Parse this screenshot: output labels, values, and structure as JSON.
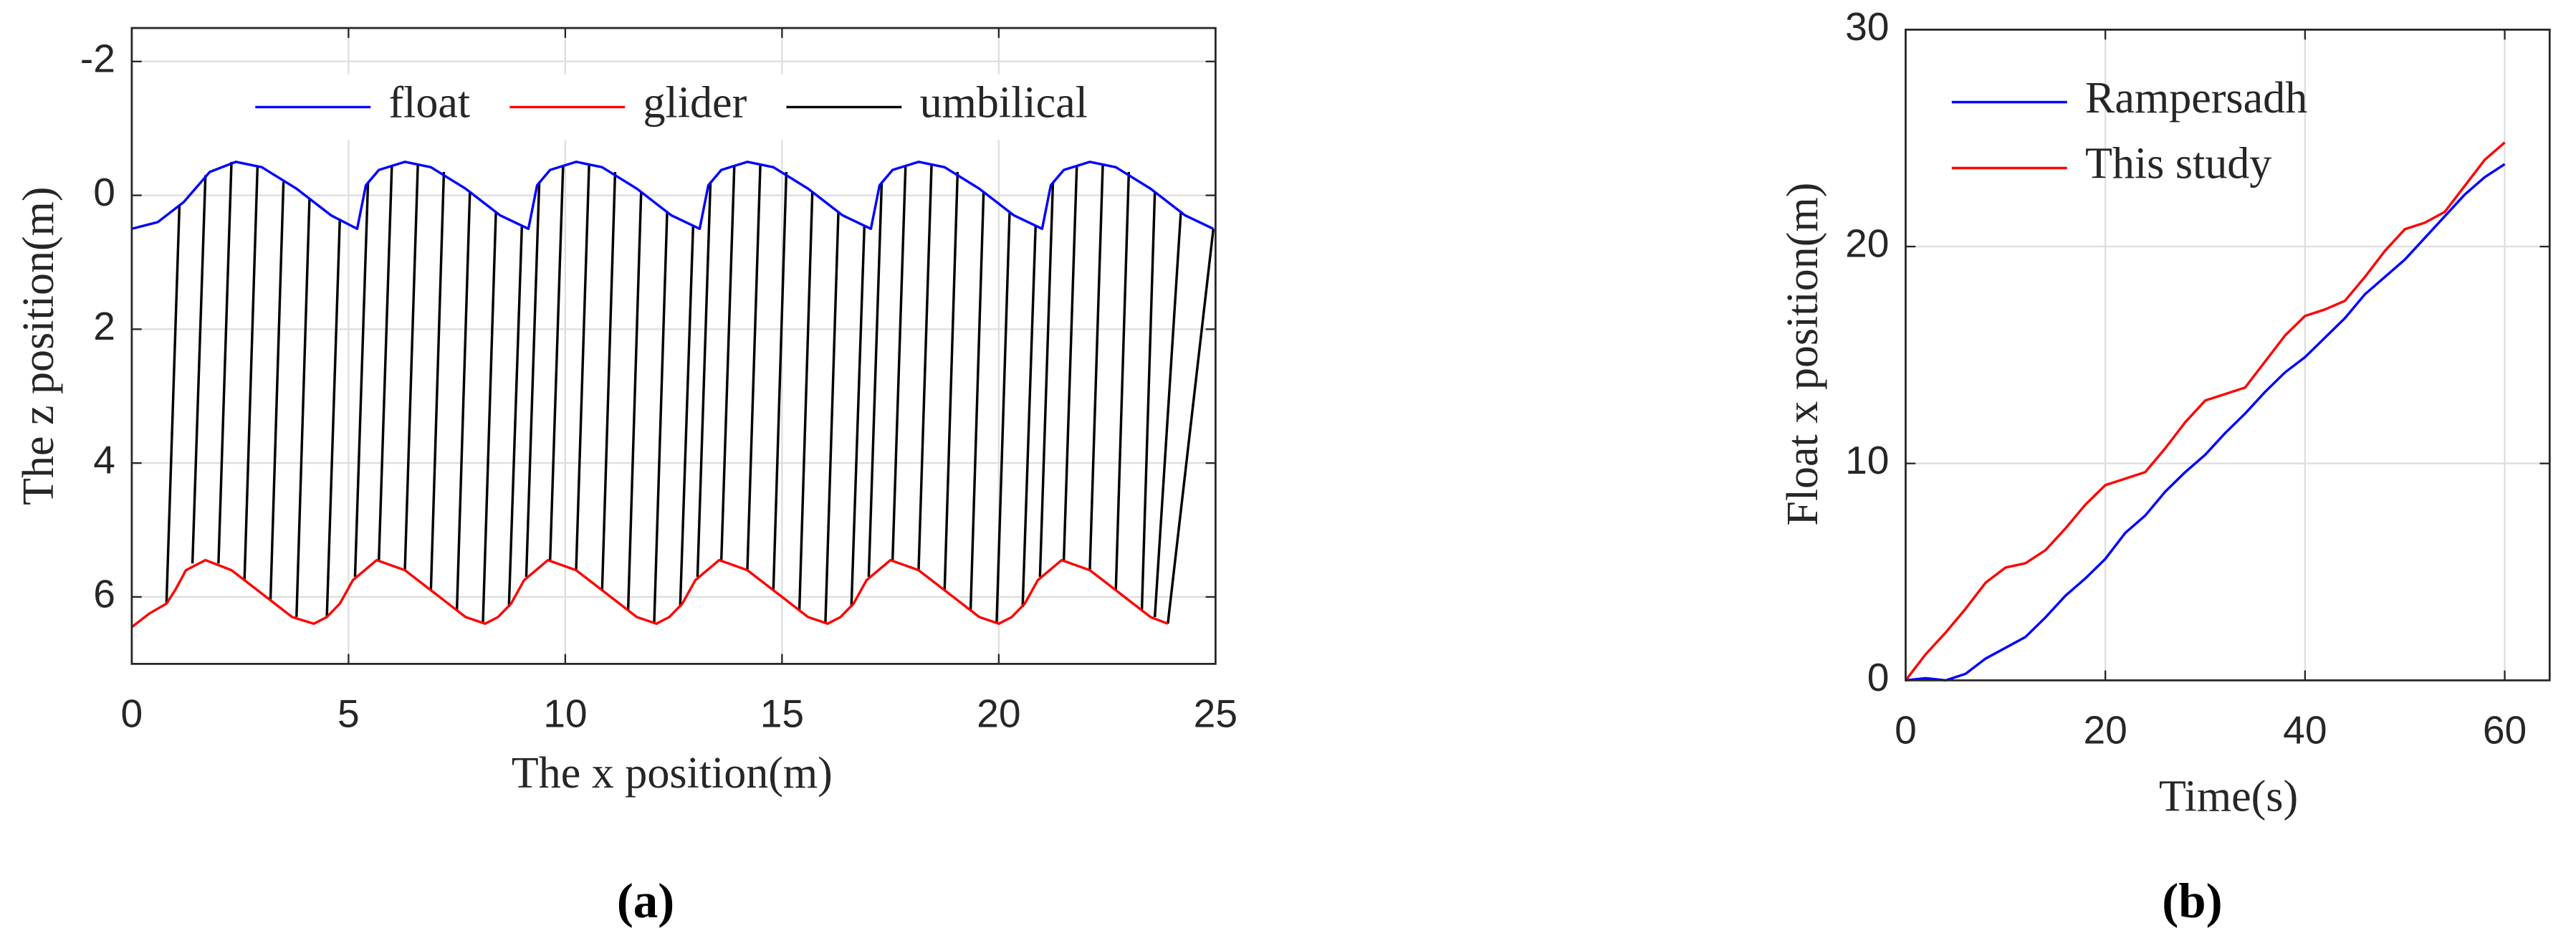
{
  "chart_data": [
    {
      "type": "line",
      "caption": "(a)",
      "xlabel": "The x position(m)",
      "ylabel": "The z position(m)",
      "xlim": [
        0,
        25
      ],
      "ylim": [
        -2.5,
        7
      ],
      "y_reverse": true,
      "xticks": [
        0,
        5,
        10,
        15,
        20,
        25
      ],
      "yticks": [
        -2,
        0,
        2,
        4,
        6
      ],
      "grid": true,
      "legend": "top",
      "series": [
        {
          "name": "float",
          "color": "#0000ff",
          "x": [
            0,
            0.6,
            1.2,
            1.8,
            2.4,
            3.0,
            3.8,
            4.6,
            5.2,
            5.4,
            5.7,
            6.3,
            6.9,
            7.7,
            8.5,
            9.15,
            9.35,
            9.65,
            10.25,
            10.85,
            11.65,
            12.45,
            13.1,
            13.3,
            13.6,
            14.2,
            14.8,
            15.6,
            16.4,
            17.05,
            17.25,
            17.55,
            18.15,
            18.75,
            19.55,
            20.35,
            21.0,
            21.2,
            21.5,
            22.1,
            22.7,
            23.5,
            24.3,
            24.95
          ],
          "values": [
            0.5,
            0.4,
            0.1,
            -0.35,
            -0.5,
            -0.42,
            -0.1,
            0.3,
            0.5,
            -0.15,
            -0.38,
            -0.5,
            -0.42,
            -0.1,
            0.3,
            0.5,
            -0.15,
            -0.38,
            -0.5,
            -0.42,
            -0.1,
            0.3,
            0.5,
            -0.15,
            -0.38,
            -0.5,
            -0.42,
            -0.1,
            0.3,
            0.5,
            -0.15,
            -0.38,
            -0.5,
            -0.42,
            -0.1,
            0.3,
            0.5,
            -0.15,
            -0.38,
            -0.5,
            -0.42,
            -0.1,
            0.3,
            0.5
          ]
        },
        {
          "name": "glider",
          "color": "#ff0000",
          "x": [
            0,
            0.4,
            0.8,
            1.0,
            1.25,
            1.7,
            2.3,
            3.0,
            3.7,
            4.2,
            4.5,
            4.8,
            5.1,
            5.65,
            6.3,
            7.0,
            7.7,
            8.15,
            8.45,
            8.75,
            9.05,
            9.6,
            10.25,
            10.95,
            11.65,
            12.1,
            12.4,
            12.7,
            13.0,
            13.55,
            14.2,
            14.9,
            15.6,
            16.05,
            16.35,
            16.65,
            16.95,
            17.5,
            18.15,
            18.85,
            19.55,
            20.0,
            20.3,
            20.6,
            20.9,
            21.45,
            22.1,
            22.8,
            23.5,
            23.9
          ],
          "values": [
            6.45,
            6.25,
            6.1,
            5.9,
            5.6,
            5.45,
            5.6,
            5.95,
            6.3,
            6.4,
            6.3,
            6.1,
            5.75,
            5.45,
            5.6,
            5.95,
            6.3,
            6.4,
            6.3,
            6.1,
            5.75,
            5.45,
            5.6,
            5.95,
            6.3,
            6.4,
            6.3,
            6.1,
            5.75,
            5.45,
            5.6,
            5.95,
            6.3,
            6.4,
            6.3,
            6.1,
            5.75,
            5.45,
            5.6,
            5.95,
            6.3,
            6.4,
            6.3,
            6.1,
            5.75,
            5.45,
            5.6,
            5.95,
            6.3,
            6.4
          ]
        },
        {
          "name": "umbilical",
          "color": "#000000",
          "x": [
            1.1,
            0.8,
            null,
            1.7,
            1.4,
            null,
            2.3,
            2.0,
            null,
            2.9,
            2.6,
            null,
            3.5,
            3.2,
            null,
            4.1,
            3.8,
            null,
            4.8,
            4.5,
            null,
            5.45,
            5.15,
            null,
            6.0,
            5.7,
            null,
            6.6,
            6.3,
            null,
            7.2,
            6.9,
            null,
            7.8,
            7.5,
            null,
            8.4,
            8.1,
            null,
            9.0,
            8.7,
            null,
            9.4,
            9.1,
            null,
            9.95,
            9.65,
            null,
            10.55,
            10.25,
            null,
            11.15,
            10.85,
            null,
            11.75,
            11.45,
            null,
            12.35,
            12.05,
            null,
            12.95,
            12.65,
            null,
            13.35,
            13.05,
            null,
            13.9,
            13.6,
            null,
            14.5,
            14.2,
            null,
            15.1,
            14.8,
            null,
            15.7,
            15.4,
            null,
            16.3,
            16.0,
            null,
            16.9,
            16.6,
            null,
            17.3,
            17.0,
            null,
            17.85,
            17.55,
            null,
            18.45,
            18.15,
            null,
            19.05,
            18.75,
            null,
            19.65,
            19.35,
            null,
            20.25,
            19.95,
            null,
            20.85,
            20.55,
            null,
            21.25,
            20.95,
            null,
            21.8,
            21.5,
            null,
            22.4,
            22.1,
            null,
            23.0,
            22.7,
            null,
            23.6,
            23.3,
            null,
            24.2,
            23.6,
            null,
            24.95,
            23.9
          ],
          "values": [
            0.15,
            6.1,
            null,
            -0.3,
            5.5,
            null,
            -0.5,
            5.5,
            null,
            -0.43,
            5.75,
            null,
            -0.2,
            6.05,
            null,
            0.05,
            6.3,
            null,
            0.35,
            6.3,
            null,
            -0.2,
            5.7,
            null,
            -0.45,
            5.45,
            null,
            -0.47,
            5.6,
            null,
            -0.35,
            5.9,
            null,
            -0.05,
            6.2,
            null,
            0.25,
            6.4,
            null,
            0.45,
            6.15,
            null,
            -0.2,
            5.7,
            null,
            -0.45,
            5.45,
            null,
            -0.47,
            5.6,
            null,
            -0.35,
            5.9,
            null,
            -0.05,
            6.2,
            null,
            0.25,
            6.4,
            null,
            0.45,
            6.15,
            null,
            -0.2,
            5.7,
            null,
            -0.45,
            5.45,
            null,
            -0.47,
            5.6,
            null,
            -0.35,
            5.9,
            null,
            -0.05,
            6.2,
            null,
            0.25,
            6.4,
            null,
            0.45,
            6.15,
            null,
            -0.2,
            5.7,
            null,
            -0.45,
            5.45,
            null,
            -0.47,
            5.6,
            null,
            -0.35,
            5.9,
            null,
            -0.05,
            6.2,
            null,
            0.25,
            6.4,
            null,
            0.45,
            6.15,
            null,
            -0.2,
            5.7,
            null,
            -0.45,
            5.45,
            null,
            -0.47,
            5.6,
            null,
            -0.35,
            5.9,
            null,
            -0.05,
            6.2,
            null,
            0.25,
            6.3,
            null,
            0.5,
            6.4
          ]
        }
      ]
    },
    {
      "type": "line",
      "caption": "(b)",
      "xlabel": "Time(s)",
      "ylabel": "Float x position(m)",
      "xlim": [
        0,
        64.5
      ],
      "ylim": [
        0,
        30
      ],
      "xticks": [
        0,
        20,
        40,
        60
      ],
      "yticks": [
        0,
        10,
        20,
        30
      ],
      "grid": true,
      "legend": "top-left",
      "x": [
        0,
        2,
        4,
        6,
        8,
        10,
        12,
        14,
        16,
        18,
        20,
        22,
        24,
        26,
        28,
        30,
        32,
        34,
        36,
        38,
        40,
        42,
        44,
        46,
        48,
        50,
        52,
        54,
        56,
        58,
        60
      ],
      "series": [
        {
          "name": "Rampersadh",
          "color": "#0000ff",
          "values": [
            0,
            0.1,
            0,
            0.3,
            1.0,
            1.5,
            2.0,
            2.9,
            3.9,
            4.7,
            5.6,
            6.8,
            7.6,
            8.7,
            9.6,
            10.4,
            11.4,
            12.3,
            13.3,
            14.2,
            14.9,
            15.8,
            16.7,
            17.8,
            18.6,
            19.4,
            20.4,
            21.4,
            22.4,
            23.2,
            23.8
          ]
        },
        {
          "name": "This study",
          "color": "#ff0000",
          "values": [
            0,
            1.2,
            2.2,
            3.3,
            4.5,
            5.2,
            5.4,
            6.0,
            7.0,
            8.1,
            9.0,
            9.3,
            9.6,
            10.7,
            11.9,
            12.9,
            13.2,
            13.5,
            14.7,
            15.9,
            16.8,
            17.1,
            17.5,
            18.6,
            19.8,
            20.8,
            21.1,
            21.6,
            22.8,
            24.0,
            24.8
          ]
        }
      ]
    }
  ]
}
